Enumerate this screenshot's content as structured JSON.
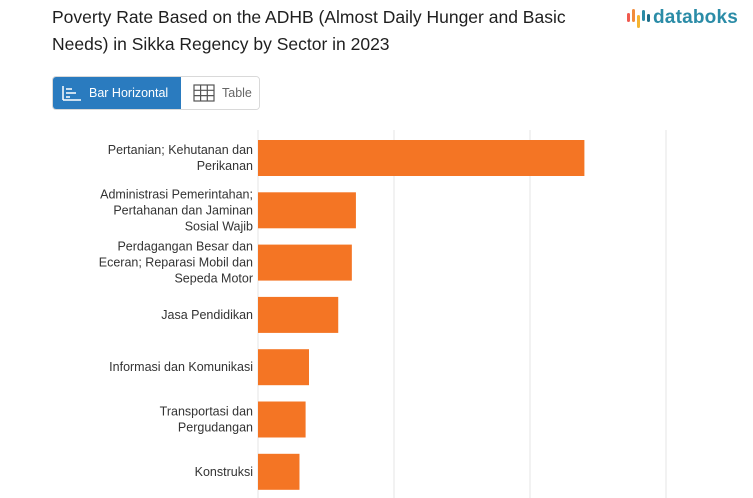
{
  "title": "Poverty Rate Based on the ADHB (Almost Daily Hunger and Basic Needs) in Sikka Regency by Sector in 2023",
  "brand": {
    "name": "databoks",
    "icon": "databoks-logo-icon",
    "colors": {
      "text": "#2b8ca7",
      "bars": [
        "#f05a4f",
        "#f28c3b",
        "#f5b531",
        "#2b8ca7",
        "#1e6f8a"
      ]
    }
  },
  "view_toggle": {
    "bar_label": "Bar Horizontal",
    "bar_icon": "bar-chart-icon",
    "table_label": "Table",
    "table_icon": "table-grid-icon",
    "active": "bar",
    "active_color": "#2a7bbf"
  },
  "chart_data": {
    "type": "bar",
    "orientation": "horizontal",
    "categories": [
      [
        "Pertanian; Kehutanan dan",
        "Perikanan"
      ],
      [
        "Administrasi Pemerintahan;",
        "Pertahanan dan Jaminan",
        "Sosial Wajib"
      ],
      [
        "Perdagangan Besar dan",
        "Eceran; Reparasi Mobil dan",
        "Sepeda Motor"
      ],
      [
        "Jasa Pendidikan"
      ],
      [
        "Informasi dan Komunikasi"
      ],
      [
        "Transportasi dan",
        "Pergudangan"
      ],
      [
        "Konstruksi"
      ]
    ],
    "values": [
      48.0,
      14.4,
      13.8,
      11.8,
      7.5,
      7.0,
      6.1
    ],
    "xlim": [
      0,
      60
    ],
    "gridlines": [
      0,
      20,
      40,
      60
    ],
    "grid": true,
    "bar_color": "#f47524",
    "grid_color": "#e6e6e6",
    "legend": "none"
  }
}
